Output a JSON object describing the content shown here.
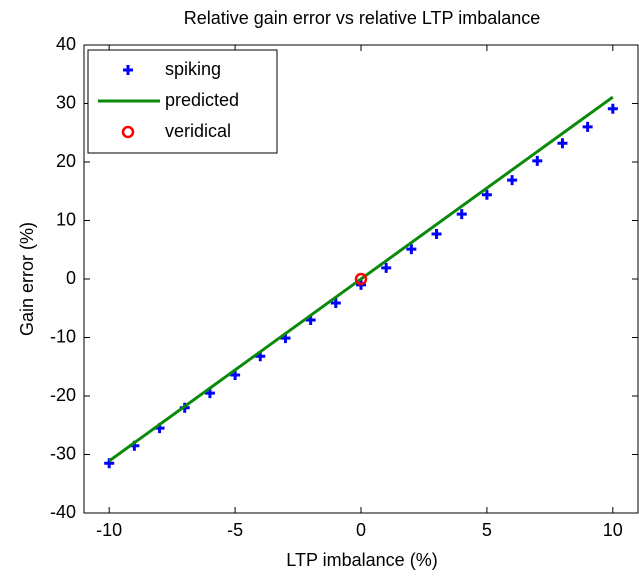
{
  "chart_data": {
    "type": "line",
    "title": "Relative gain error vs relative LTP imbalance",
    "x_label": "LTP imbalance (%)",
    "y_label": "Gain error  (%)",
    "xlim": [
      -11,
      11
    ],
    "ylim": [
      -40,
      40
    ],
    "xticks": [
      -10,
      -5,
      0,
      5,
      10
    ],
    "yticks": [
      -40,
      -30,
      -20,
      -10,
      0,
      10,
      20,
      30,
      40
    ],
    "legend": "upper left",
    "series": [
      {
        "name": "spiking",
        "color": "#0000ff",
        "marker": "+",
        "x": [
          -10,
          -9,
          -8,
          -7,
          -6,
          -5,
          -4,
          -3,
          -2,
          -1,
          0,
          1,
          2,
          3,
          4,
          5,
          6,
          7,
          8,
          9,
          10
        ],
        "values": [
          -31.5,
          -28.5,
          -25.5,
          -22,
          -19.5,
          -16.4,
          -13.2,
          -10.1,
          -7,
          -4.1,
          -1,
          1.9,
          5.1,
          7.7,
          11.1,
          14.4,
          16.9,
          20.2,
          23.2,
          26,
          29.1
        ]
      },
      {
        "name": "predicted",
        "color": "#0a8a0a",
        "marker": "line",
        "x": [
          -10,
          10
        ],
        "values": [
          -31.1,
          31.1
        ]
      },
      {
        "name": "veridical",
        "color": "#ff0000",
        "marker": "o",
        "x": [
          0
        ],
        "values": [
          0
        ]
      }
    ]
  }
}
